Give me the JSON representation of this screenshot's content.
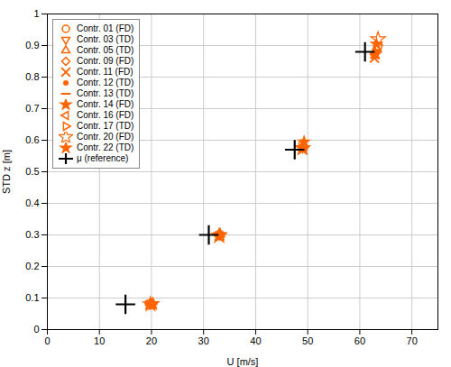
{
  "chart_data": {
    "type": "scatter",
    "xlabel": "U [m/s]",
    "ylabel": "STD z [m]",
    "xlim": [
      0,
      75
    ],
    "ylim": [
      0,
      1.0
    ],
    "xticks": [
      0,
      10,
      20,
      30,
      40,
      50,
      60,
      70
    ],
    "yticks": [
      0,
      0.1,
      0.2,
      0.3,
      0.4,
      0.5,
      0.6,
      0.7,
      0.8,
      0.9,
      1.0
    ],
    "grid": true,
    "legend": "upper left",
    "series": [
      {
        "name": "Contr. 01 (FD)",
        "color": "#FF6400",
        "marker": "circle-open",
        "x": [
          19.5,
          33.0,
          49.0,
          63.5
        ],
        "values": [
          0.082,
          0.302,
          0.59,
          0.895
        ]
      },
      {
        "name": "Contr. 03 (TD)",
        "color": "#FF6400",
        "marker": "triangle-down-open",
        "x": [
          19.8,
          33.1,
          49.0,
          63.2
        ],
        "values": [
          0.079,
          0.299,
          0.575,
          0.88
        ]
      },
      {
        "name": "Contr. 05 (TD)",
        "color": "#FF6400",
        "marker": "triangle-up-open",
        "x": [
          20.0,
          33.2,
          49.1,
          63.3
        ],
        "values": [
          0.08,
          0.3,
          0.58,
          0.89
        ]
      },
      {
        "name": "Contr. 09 (FD)",
        "color": "#FF6400",
        "marker": "diamond-open",
        "x": [
          20.2,
          33.0,
          49.2,
          63.0
        ],
        "values": [
          0.081,
          0.298,
          0.578,
          0.875
        ]
      },
      {
        "name": "Contr. 11 (FD)",
        "color": "#FF6400",
        "marker": "x",
        "x": [
          19.7,
          33.0,
          49.0,
          62.8
        ],
        "values": [
          0.079,
          0.297,
          0.57,
          0.86
        ]
      },
      {
        "name": "Contr. 12 (TD)",
        "color": "#FF6400",
        "marker": "circle",
        "x": [
          20.1,
          33.1,
          49.1,
          63.0
        ],
        "values": [
          0.081,
          0.3,
          0.573,
          0.876
        ]
      },
      {
        "name": "Contr. 13 (TD)",
        "color": "#FF6400",
        "marker": "line-ew",
        "x": [
          19.9,
          33.0,
          49.0,
          62.9
        ],
        "values": [
          0.078,
          0.296,
          0.568,
          0.862
        ]
      },
      {
        "name": "Contr. 14 (FD)",
        "color": "#FF6400",
        "marker": "star",
        "x": [
          20.3,
          33.2,
          49.3,
          63.2
        ],
        "values": [
          0.082,
          0.301,
          0.595,
          0.905
        ]
      },
      {
        "name": "Contr. 16 (FD)",
        "color": "#FF6400",
        "marker": "triangle-left-open",
        "x": [
          20.0,
          33.0,
          49.1,
          63.0
        ],
        "values": [
          0.08,
          0.299,
          0.582,
          0.872
        ]
      },
      {
        "name": "Contr. 17 (TD)",
        "color": "#FF6400",
        "marker": "triangle-right-open",
        "x": [
          20.1,
          33.1,
          49.2,
          63.1
        ],
        "values": [
          0.081,
          0.298,
          0.577,
          0.878
        ]
      },
      {
        "name": "Contr. 20 (FD)",
        "color": "#FF6400",
        "marker": "star-open",
        "x": [
          19.8,
          33.0,
          49.0,
          63.5
        ],
        "values": [
          0.08,
          0.297,
          0.575,
          0.92
        ]
      },
      {
        "name": "Contr. 22 (TD)",
        "color": "#FF6400",
        "marker": "star",
        "x": [
          20.2,
          33.1,
          49.1,
          63.0
        ],
        "values": [
          0.081,
          0.299,
          0.574,
          0.873
        ]
      },
      {
        "name": "μ (reference)",
        "color": "#000000",
        "marker": "cross",
        "x": [
          15.0,
          31.0,
          47.5,
          61.0
        ],
        "values": [
          0.08,
          0.3,
          0.57,
          0.88
        ]
      }
    ]
  }
}
